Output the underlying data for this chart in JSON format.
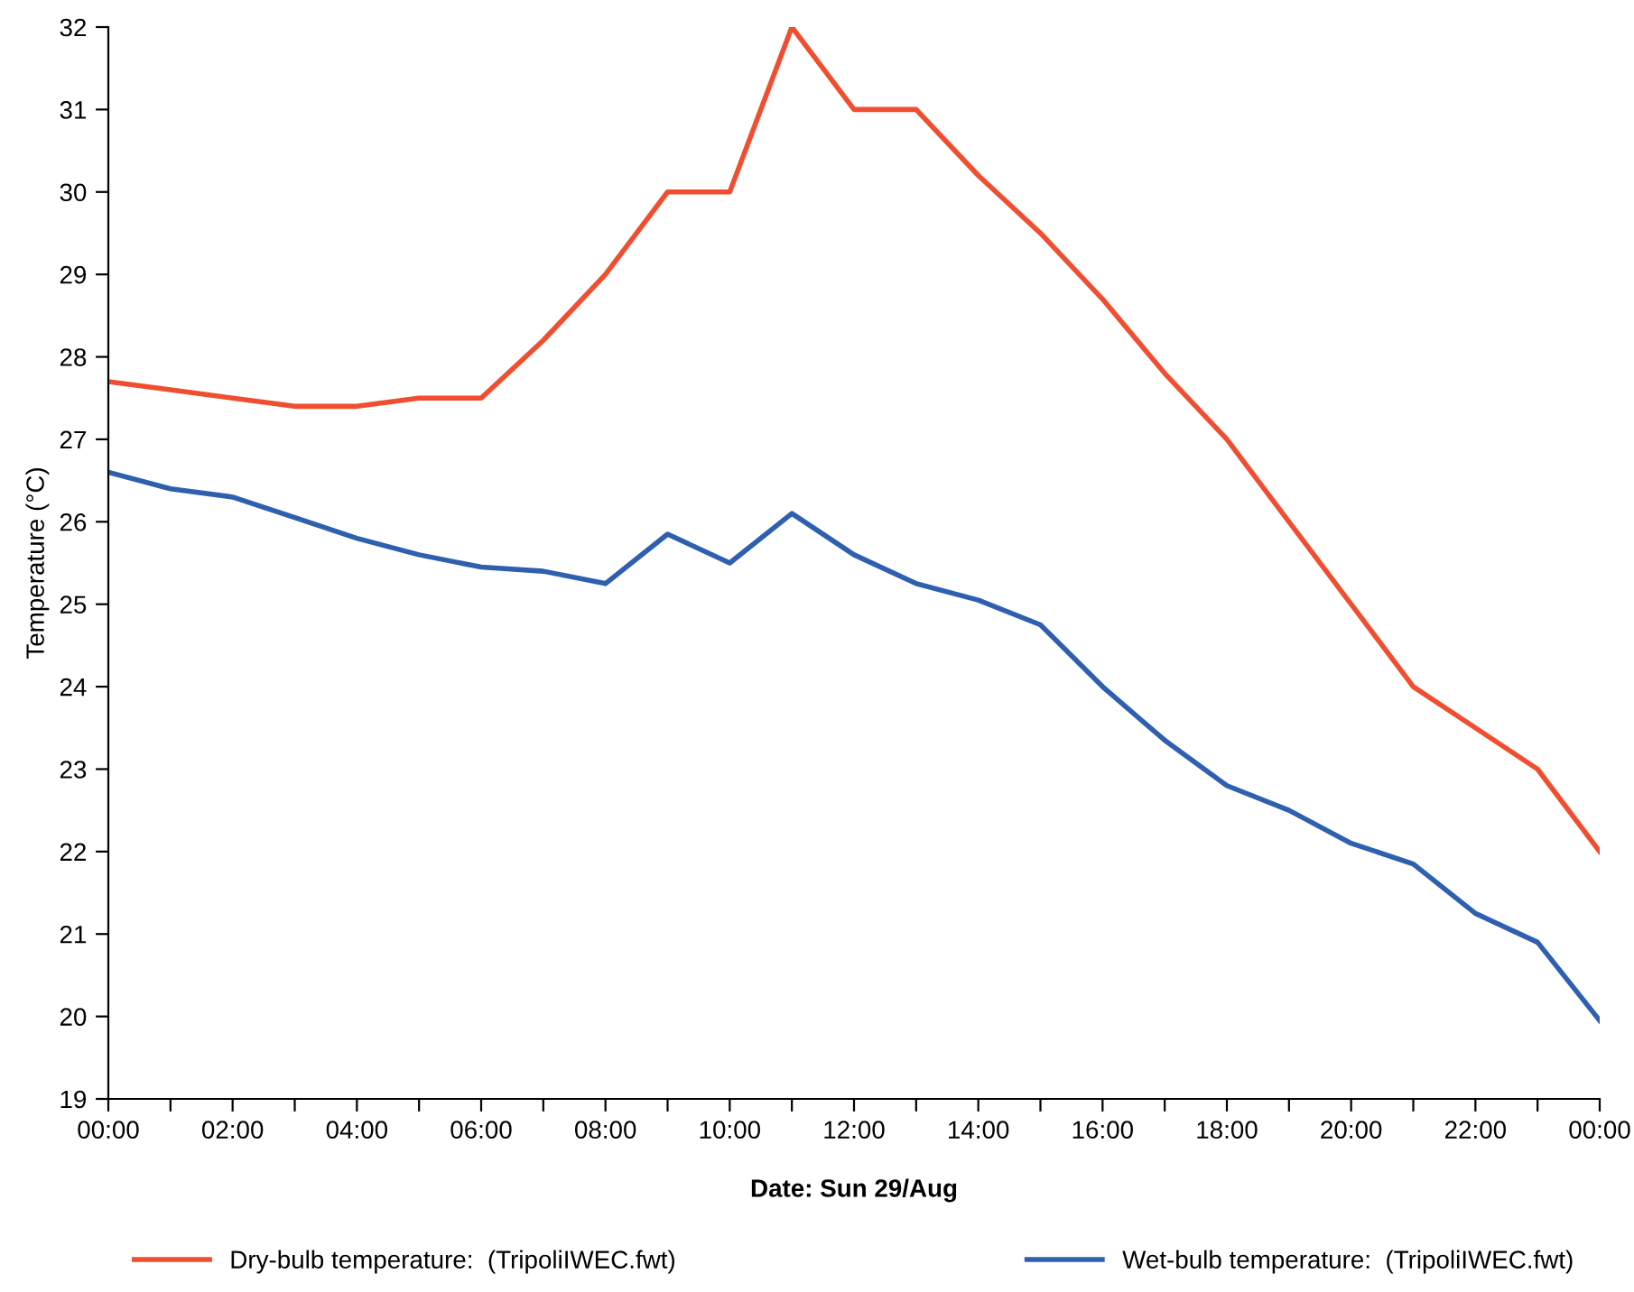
{
  "chart_data": {
    "type": "line",
    "xlabel": "Date: Sun 29/Aug",
    "ylabel": "Temperature (°C)",
    "x": [
      0,
      1,
      2,
      3,
      4,
      5,
      6,
      7,
      8,
      9,
      10,
      11,
      12,
      13,
      14,
      15,
      16,
      17,
      18,
      19,
      20,
      21,
      22,
      23,
      24
    ],
    "series": [
      {
        "name": "Dry-bulb temperature:  (TripoliIWEC.fwt)",
        "color": "#f04e30",
        "values": [
          27.7,
          27.6,
          27.5,
          27.4,
          27.4,
          27.5,
          27.5,
          28.2,
          29.0,
          30.0,
          30.0,
          32.0,
          31.0,
          31.0,
          30.2,
          29.5,
          28.7,
          27.8,
          27.0,
          26.0,
          25.0,
          24.0,
          23.5,
          23.0,
          22.0
        ]
      },
      {
        "name": "Wet-bulb temperature:  (TripoliIWEC.fwt)",
        "color": "#2f5faf",
        "values": [
          26.6,
          26.4,
          26.3,
          26.05,
          25.8,
          25.6,
          25.45,
          25.4,
          25.25,
          25.85,
          25.5,
          26.1,
          25.6,
          25.25,
          25.05,
          24.75,
          24.0,
          23.35,
          22.8,
          22.5,
          22.1,
          21.85,
          21.25,
          20.9,
          19.95
        ]
      }
    ],
    "xlim": [
      0,
      24
    ],
    "xticks": [
      {
        "value": 0,
        "label": "00:00"
      },
      {
        "value": 1,
        "label": null
      },
      {
        "value": 2,
        "label": "02:00"
      },
      {
        "value": 3,
        "label": null
      },
      {
        "value": 4,
        "label": "04:00"
      },
      {
        "value": 5,
        "label": null
      },
      {
        "value": 6,
        "label": "06:00"
      },
      {
        "value": 7,
        "label": null
      },
      {
        "value": 8,
        "label": "08:00"
      },
      {
        "value": 9,
        "label": null
      },
      {
        "value": 10,
        "label": "10:00"
      },
      {
        "value": 11,
        "label": null
      },
      {
        "value": 12,
        "label": "12:00"
      },
      {
        "value": 13,
        "label": null
      },
      {
        "value": 14,
        "label": "14:00"
      },
      {
        "value": 15,
        "label": null
      },
      {
        "value": 16,
        "label": "16:00"
      },
      {
        "value": 17,
        "label": null
      },
      {
        "value": 18,
        "label": "18:00"
      },
      {
        "value": 19,
        "label": null
      },
      {
        "value": 20,
        "label": "20:00"
      },
      {
        "value": 21,
        "label": null
      },
      {
        "value": 22,
        "label": "22:00"
      },
      {
        "value": 23,
        "label": null
      },
      {
        "value": 24,
        "label": "00:00"
      }
    ],
    "ylim": [
      19,
      32
    ],
    "yticks": [
      19,
      20,
      21,
      22,
      23,
      24,
      25,
      26,
      27,
      28,
      29,
      30,
      31,
      32
    ],
    "grid": false,
    "legend": "bottom",
    "marker": "none",
    "line_style": "solid"
  }
}
